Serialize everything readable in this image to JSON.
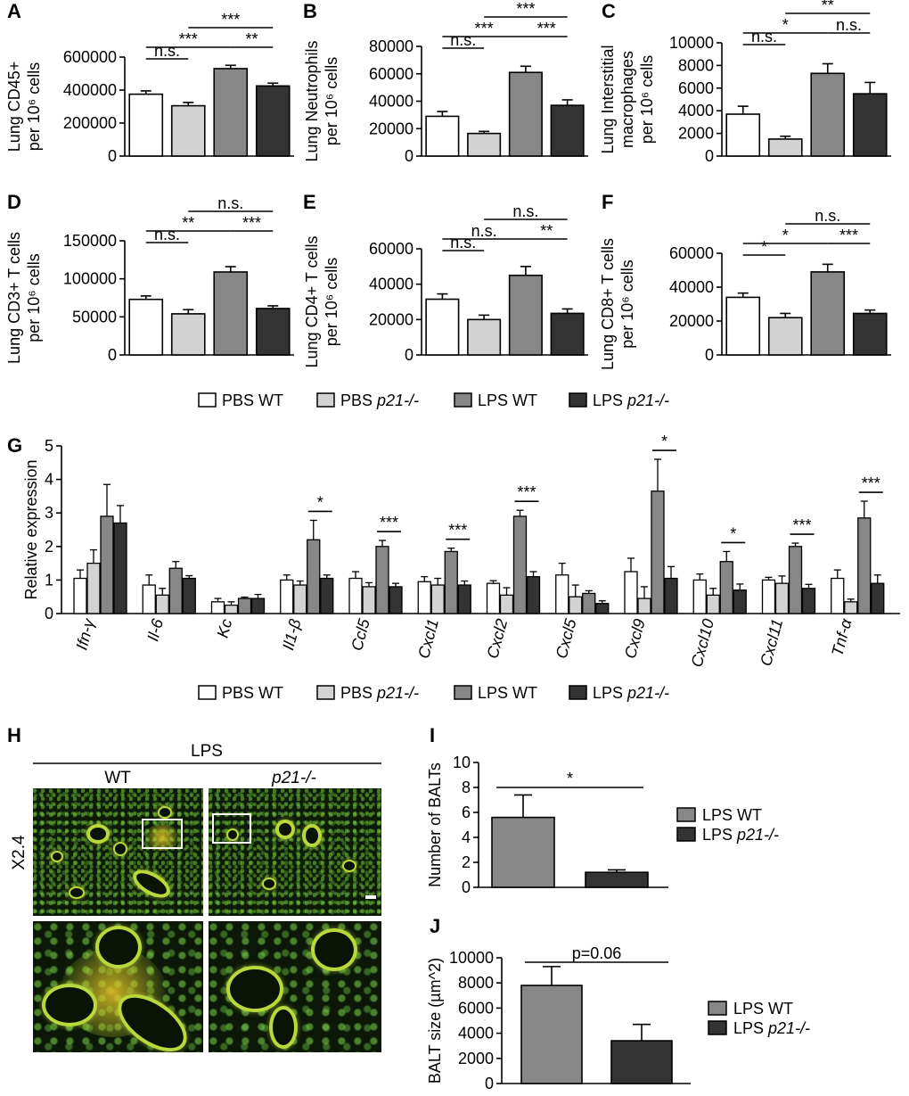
{
  "colors": {
    "pbs_wt": "#ffffff",
    "pbs_ko": "#d3d3d3",
    "lps_wt": "#878787",
    "lps_ko": "#333333"
  },
  "legend": {
    "pbs_wt_prefix": "PBS WT",
    "pbs_wt_suffix": "",
    "pbs_ko_prefix": "PBS ",
    "pbs_ko_suffix": "p21-/-",
    "lps_wt_prefix": "LPS WT",
    "lps_wt_suffix": "",
    "lps_ko_prefix": "LPS ",
    "lps_ko_suffix": "p21-/-"
  },
  "chart_data": [
    {
      "id": "A",
      "type": "bar",
      "ylabel": [
        "Lung CD45+",
        "per 10⁶ cells"
      ],
      "categories": [
        "PBS WT",
        "PBS p21-/-",
        "LPS WT",
        "LPS p21-/-"
      ],
      "values": [
        375000,
        305000,
        530000,
        425000
      ],
      "errors": [
        20000,
        20000,
        20000,
        17000
      ],
      "ylim": [
        0,
        600000
      ],
      "ticks": [
        "0",
        "200000",
        "400000",
        "600000"
      ],
      "brackets": [
        {
          "from": 0,
          "to": 1,
          "label": "n.s.",
          "level": 0
        },
        {
          "from": 0,
          "to": 2,
          "label": "***",
          "level": 1
        },
        {
          "from": 2,
          "to": 3,
          "label": "**",
          "level": 1
        },
        {
          "from": 1,
          "to": 3,
          "label": "***",
          "level": 2
        }
      ]
    },
    {
      "id": "B",
      "type": "bar",
      "ylabel": [
        "Lung Neutrophils",
        "per 10⁶ cells"
      ],
      "categories": [
        "PBS WT",
        "PBS p21-/-",
        "LPS WT",
        "LPS p21-/-"
      ],
      "values": [
        29000,
        16500,
        61000,
        37000
      ],
      "errors": [
        3500,
        1500,
        4500,
        4000
      ],
      "ylim": [
        0,
        80000
      ],
      "ticks": [
        "0",
        "20000",
        "40000",
        "60000",
        "80000"
      ],
      "brackets": [
        {
          "from": 0,
          "to": 1,
          "label": "n.s.",
          "level": 0
        },
        {
          "from": 0,
          "to": 2,
          "label": "***",
          "level": 1
        },
        {
          "from": 2,
          "to": 3,
          "label": "***",
          "level": 1
        },
        {
          "from": 1,
          "to": 3,
          "label": "***",
          "level": 2
        }
      ]
    },
    {
      "id": "C",
      "type": "bar",
      "ylabel": [
        "Lung Interstitial",
        "macrophages",
        "per 10⁶ cells"
      ],
      "categories": [
        "PBS WT",
        "PBS p21-/-",
        "LPS WT",
        "LPS p21-/-"
      ],
      "values": [
        3700,
        1500,
        7300,
        5500
      ],
      "errors": [
        700,
        250,
        850,
        1000
      ],
      "ylim": [
        0,
        10000
      ],
      "ticks": [
        "0",
        "2000",
        "4000",
        "6000",
        "8000",
        "10000"
      ],
      "brackets": [
        {
          "from": 0,
          "to": 1,
          "label": "n.s.",
          "level": 0
        },
        {
          "from": 0,
          "to": 2,
          "label": "*",
          "level": 1
        },
        {
          "from": 2,
          "to": 3,
          "label": "n.s.",
          "level": 1
        },
        {
          "from": 1,
          "to": 3,
          "label": "**",
          "level": 2
        }
      ]
    },
    {
      "id": "D",
      "type": "bar",
      "ylabel": [
        "Lung CD3+ T cells",
        "per 10⁶ cells"
      ],
      "categories": [
        "PBS WT",
        "PBS p21-/-",
        "LPS WT",
        "LPS p21-/-"
      ],
      "values": [
        73000,
        54000,
        109000,
        61000
      ],
      "errors": [
        4500,
        5500,
        7000,
        3500
      ],
      "ylim": [
        0,
        150000
      ],
      "ticks": [
        "0",
        "50000",
        "100000",
        "150000"
      ],
      "brackets": [
        {
          "from": 0,
          "to": 1,
          "label": "n.s.",
          "level": 0
        },
        {
          "from": 0,
          "to": 2,
          "label": "**",
          "level": 1
        },
        {
          "from": 2,
          "to": 3,
          "label": "***",
          "level": 1
        },
        {
          "from": 1,
          "to": 3,
          "label": "n.s.",
          "level": 2
        }
      ]
    },
    {
      "id": "E",
      "type": "bar",
      "ylabel": [
        "Lung CD4+ T cells",
        "per 10⁶ cells"
      ],
      "categories": [
        "PBS WT",
        "PBS p21-/-",
        "LPS WT",
        "LPS p21-/-"
      ],
      "values": [
        31500,
        20000,
        45000,
        23500
      ],
      "errors": [
        3000,
        2500,
        5000,
        2500
      ],
      "ylim": [
        0,
        60000
      ],
      "ticks": [
        "0",
        "20000",
        "40000",
        "60000"
      ],
      "brackets": [
        {
          "from": 0,
          "to": 1,
          "label": "n.s.",
          "level": 0
        },
        {
          "from": 0,
          "to": 2,
          "label": "n.s.",
          "level": 1
        },
        {
          "from": 2,
          "to": 3,
          "label": "**",
          "level": 1
        },
        {
          "from": 1,
          "to": 3,
          "label": "n.s.",
          "level": 2
        }
      ]
    },
    {
      "id": "F",
      "type": "bar",
      "ylabel": [
        "Lung CD8+ T cells",
        "per 10⁶ cells"
      ],
      "categories": [
        "PBS WT",
        "PBS p21-/-",
        "LPS WT",
        "LPS p21-/-"
      ],
      "values": [
        34000,
        22000,
        49000,
        24500
      ],
      "errors": [
        2500,
        2500,
        4500,
        2000
      ],
      "ylim": [
        0,
        60000
      ],
      "ticks": [
        "0",
        "20000",
        "40000",
        "60000"
      ],
      "brackets": [
        {
          "from": 0,
          "to": 1,
          "label": "*",
          "level": 0
        },
        {
          "from": 0,
          "to": 2,
          "label": "*",
          "level": 1
        },
        {
          "from": 2,
          "to": 3,
          "label": "***",
          "level": 1
        },
        {
          "from": 1,
          "to": 3,
          "label": "n.s.",
          "level": 2
        }
      ]
    },
    {
      "id": "G",
      "type": "bar",
      "ylabel": "Relative expression",
      "categories": [
        "Ifn-γ",
        "Il-6",
        "Kc",
        "Il1-β",
        "Ccl5",
        "Cxcl1",
        "Cxcl2",
        "Cxcl5",
        "Cxcl9",
        "Cxcl10",
        "Cxcl11",
        "Tnf-α"
      ],
      "ylim": [
        0,
        5
      ],
      "ticks": [
        "0",
        "1",
        "2",
        "3",
        "4",
        "5"
      ],
      "series": [
        {
          "name": "PBS WT",
          "values": [
            1.05,
            0.85,
            0.35,
            1.0,
            1.05,
            0.95,
            0.9,
            1.15,
            1.25,
            1.0,
            1.0,
            1.05
          ],
          "errors": [
            0.25,
            0.3,
            0.1,
            0.15,
            0.2,
            0.15,
            0.08,
            0.35,
            0.4,
            0.18,
            0.08,
            0.25
          ]
        },
        {
          "name": "PBS p21-/-",
          "values": [
            1.5,
            0.55,
            0.25,
            0.85,
            0.8,
            0.85,
            0.55,
            0.5,
            0.45,
            0.55,
            0.9,
            0.35
          ],
          "errors": [
            0.4,
            0.2,
            0.1,
            0.12,
            0.12,
            0.2,
            0.22,
            0.35,
            0.35,
            0.2,
            0.22,
            0.08
          ]
        },
        {
          "name": "LPS WT",
          "values": [
            2.9,
            1.35,
            0.45,
            2.2,
            2.0,
            1.85,
            2.9,
            0.6,
            3.65,
            1.55,
            2.0,
            2.85
          ],
          "errors": [
            0.95,
            0.2,
            0.04,
            0.58,
            0.18,
            0.1,
            0.18,
            0.08,
            0.95,
            0.3,
            0.1,
            0.5
          ]
        },
        {
          "name": "LPS p21-/-",
          "values": [
            2.7,
            1.05,
            0.45,
            1.05,
            0.8,
            0.85,
            1.1,
            0.3,
            1.05,
            0.7,
            0.75,
            0.9
          ],
          "errors": [
            0.52,
            0.08,
            0.12,
            0.1,
            0.1,
            0.12,
            0.15,
            0.08,
            0.35,
            0.18,
            0.12,
            0.25
          ]
        }
      ],
      "sig": [
        {
          "category": 3,
          "label": "*"
        },
        {
          "category": 4,
          "label": "***"
        },
        {
          "category": 5,
          "label": "***"
        },
        {
          "category": 6,
          "label": "***"
        },
        {
          "category": 8,
          "label": "*"
        },
        {
          "category": 9,
          "label": "*"
        },
        {
          "category": 10,
          "label": "***"
        },
        {
          "category": 11,
          "label": "***"
        }
      ]
    },
    {
      "id": "I",
      "type": "bar",
      "ylabel": "Number of BALTs",
      "categories": [
        "LPS WT",
        "LPS p21-/-"
      ],
      "values": [
        5.6,
        1.2
      ],
      "errors": [
        1.8,
        0.2
      ],
      "ylim": [
        0,
        10
      ],
      "ticks": [
        "0",
        "2",
        "4",
        "6",
        "8",
        "10"
      ],
      "brackets": [
        {
          "from": 0,
          "to": 1,
          "label": "*",
          "level": 0
        }
      ],
      "legend": [
        "LPS WT",
        "LPS p21-/-"
      ]
    },
    {
      "id": "J",
      "type": "bar",
      "ylabel": "BALT size (µm^2)",
      "categories": [
        "LPS WT",
        "LPS p21-/-"
      ],
      "values": [
        7800,
        3400
      ],
      "errors": [
        1500,
        1300
      ],
      "ylim": [
        0,
        10000
      ],
      "ticks": [
        "0",
        "2000",
        "4000",
        "6000",
        "8000",
        "10000"
      ],
      "brackets": [
        {
          "from": 0,
          "to": 1,
          "label": "p=0.06",
          "level": 0
        }
      ],
      "legend": [
        "LPS WT",
        "LPS p21-/-"
      ]
    }
  ],
  "panel_h": {
    "title": "LPS",
    "col1": "WT",
    "col2": "p21-/-",
    "magnification": "X2.4"
  }
}
